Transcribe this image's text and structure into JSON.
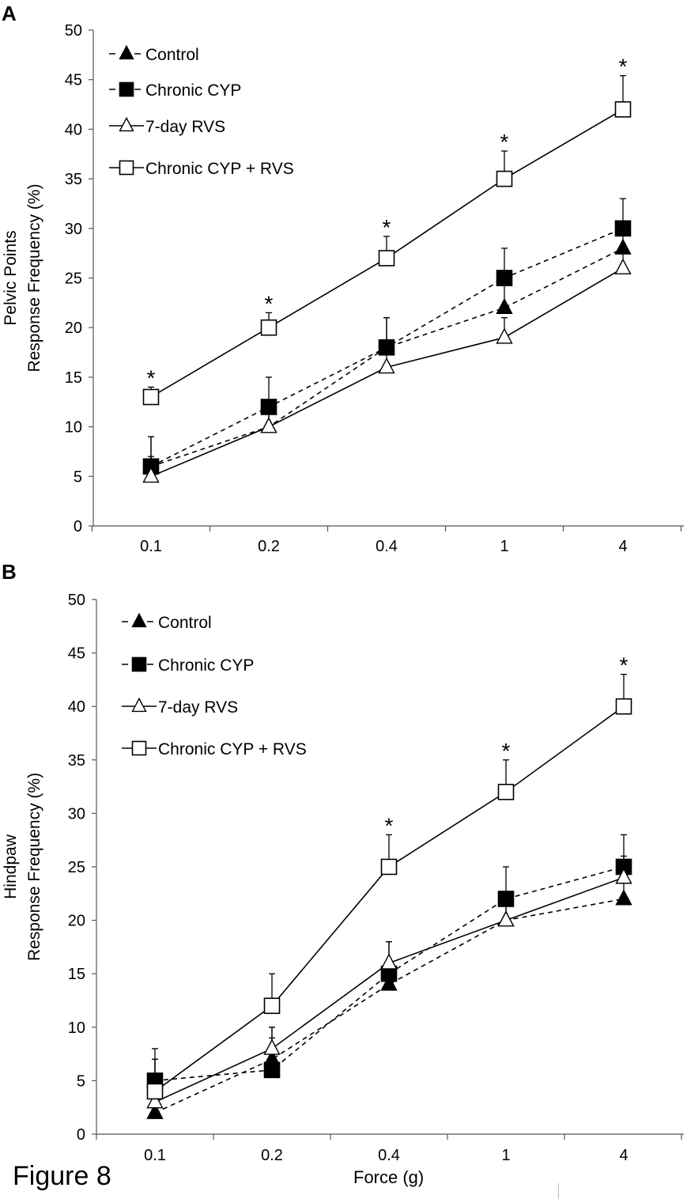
{
  "figure_label": "Figure 8",
  "x_axis_title": "Force (g)",
  "legend_labels": [
    "Control",
    "Chronic CYP",
    "7-day RVS",
    "Chronic CYP + RVS"
  ],
  "chart_data": [
    {
      "panel": "A",
      "type": "line",
      "categories": [
        "0.1",
        "0.2",
        "0.4",
        "1",
        "4"
      ],
      "ylabel": [
        "Pelvic Points",
        "Response Frequency (%)"
      ],
      "ylim": [
        0,
        50
      ],
      "yticks": [
        "0",
        "5",
        "10",
        "15",
        "20",
        "25",
        "30",
        "35",
        "40",
        "45",
        "50"
      ],
      "series": [
        {
          "name": "Control",
          "marker": "filled-triangle",
          "line": "dashed",
          "values": [
            6,
            10,
            18,
            22,
            28
          ],
          "error": [
            3,
            2,
            3,
            3,
            2
          ]
        },
        {
          "name": "Chronic CYP",
          "marker": "filled-square",
          "line": "dashed",
          "values": [
            6,
            12,
            18,
            25,
            30
          ],
          "error": [
            3,
            3,
            3,
            3,
            3
          ]
        },
        {
          "name": "7-day RVS",
          "marker": "open-triangle",
          "line": "solid",
          "values": [
            5,
            10,
            16,
            19,
            26
          ],
          "error": [
            2,
            2,
            2,
            2,
            2
          ]
        },
        {
          "name": "Chronic CYP + RVS",
          "marker": "open-square",
          "line": "solid",
          "values": [
            13,
            20,
            27,
            35,
            42
          ],
          "error": [
            1,
            1.5,
            2.2,
            2.8,
            3.4
          ]
        }
      ],
      "significance": [
        "*",
        "*",
        "*",
        "*",
        "*"
      ],
      "significance_categories": [
        "0.1",
        "0.2",
        "0.4",
        "1",
        "4"
      ]
    },
    {
      "panel": "B",
      "type": "line",
      "categories": [
        "0.1",
        "0.2",
        "0.4",
        "1",
        "4"
      ],
      "ylabel": [
        "Hindpaw",
        "Response Frequency (%)"
      ],
      "ylim": [
        0,
        50
      ],
      "yticks": [
        "0",
        "5",
        "10",
        "15",
        "20",
        "25",
        "30",
        "35",
        "40",
        "45",
        "50"
      ],
      "series": [
        {
          "name": "Control",
          "marker": "filled-triangle",
          "line": "dashed",
          "values": [
            2,
            7,
            14,
            20,
            22
          ],
          "error": [
            5,
            3,
            2,
            2,
            2
          ]
        },
        {
          "name": "Chronic CYP",
          "marker": "filled-square",
          "line": "dashed",
          "values": [
            5,
            6,
            15,
            22,
            25
          ],
          "error": [
            3,
            3,
            3,
            3,
            3
          ]
        },
        {
          "name": "7-day RVS",
          "marker": "open-triangle",
          "line": "solid",
          "values": [
            3,
            8,
            16,
            20,
            24
          ],
          "error": [
            2,
            2,
            2,
            2,
            2
          ]
        },
        {
          "name": "Chronic CYP + RVS",
          "marker": "open-square",
          "line": "solid",
          "values": [
            4,
            12,
            25,
            32,
            40
          ],
          "error": [
            3,
            3,
            3,
            3,
            3
          ]
        }
      ],
      "significance": [
        "*",
        "*",
        "*"
      ],
      "significance_categories": [
        "0.4",
        "1",
        "4"
      ]
    }
  ]
}
